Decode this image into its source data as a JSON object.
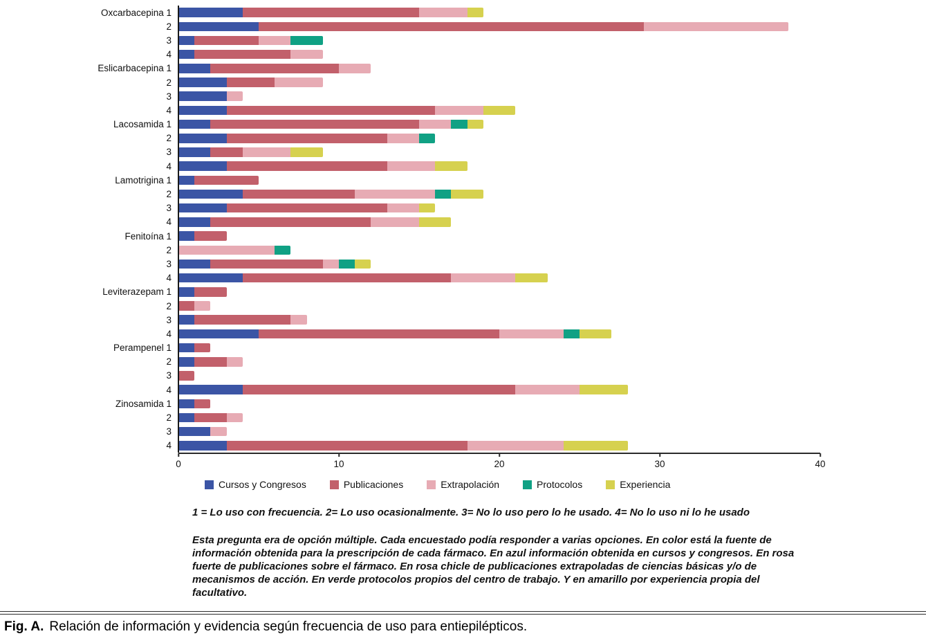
{
  "figure": {
    "fig_label": "Fig. A.",
    "fig_caption": "Relación de información y evidencia según frecuencia de uso para entiepilépticos."
  },
  "notes": {
    "scale_note": "1 = Lo uso con frecuencia. 2= Lo uso ocasionalmente. 3= No lo uso pero lo he usado. 4= No lo uso ni lo he usado",
    "paragraph": "Esta pregunta era de opción múltiple. Cada encuestado podía responder a varias opciones. En color está la fuente de información obtenida para la prescripción de cada fármaco. En azul información obtenida en cursos y congresos. En rosa fuerte de publicaciones sobre el fármaco. En rosa chicle de publicaciones extrapoladas de ciencias básicas y/o de mecanismos de acción. En verde protocolos propios del centro de trabajo. Y en amarillo por experiencia propia del facultativo."
  },
  "chart_data": {
    "type": "bar",
    "orientation": "horizontal",
    "stacked": true,
    "title": "",
    "xlabel": "",
    "ylabel": "",
    "xlim": [
      0,
      40
    ],
    "x_ticks": [
      0,
      10,
      20,
      30,
      40
    ],
    "grid": false,
    "legend_position": "bottom",
    "legend": [
      {
        "name": "Cursos y Congresos",
        "color": "#3b55a5"
      },
      {
        "name": "Publicaciones",
        "color": "#c2606b"
      },
      {
        "name": "Extrapolación",
        "color": "#e7abb4"
      },
      {
        "name": "Protocolos",
        "color": "#10a184"
      },
      {
        "name": "Experiencia",
        "color": "#d6d14f"
      }
    ],
    "row_scale_labels": [
      "1",
      "2",
      "3",
      "4"
    ],
    "groups": [
      {
        "drug": "Oxcarbacepina",
        "rows": [
          {
            "label": "1",
            "values": [
              4,
              11,
              3,
              0,
              1
            ]
          },
          {
            "label": "2",
            "values": [
              5,
              24,
              9,
              0,
              0
            ]
          },
          {
            "label": "3",
            "values": [
              1,
              4,
              2,
              2,
              0
            ]
          },
          {
            "label": "4",
            "values": [
              1,
              6,
              2,
              0,
              0
            ]
          }
        ]
      },
      {
        "drug": "Eslicarbacepina",
        "rows": [
          {
            "label": "1",
            "values": [
              2,
              8,
              2,
              0,
              0
            ]
          },
          {
            "label": "2",
            "values": [
              3,
              3,
              3,
              0,
              0
            ]
          },
          {
            "label": "3",
            "values": [
              3,
              0,
              1,
              0,
              0
            ]
          },
          {
            "label": "4",
            "values": [
              3,
              13,
              3,
              0,
              2
            ]
          }
        ]
      },
      {
        "drug": "Lacosamida",
        "rows": [
          {
            "label": "1",
            "values": [
              2,
              13,
              2,
              1,
              1
            ]
          },
          {
            "label": "2",
            "values": [
              3,
              10,
              2,
              1,
              0
            ]
          },
          {
            "label": "3",
            "values": [
              2,
              2,
              3,
              0,
              2
            ]
          },
          {
            "label": "4",
            "values": [
              3,
              10,
              3,
              0,
              2
            ]
          }
        ]
      },
      {
        "drug": "Lamotrigina",
        "rows": [
          {
            "label": "1",
            "values": [
              1,
              4,
              0,
              0,
              0
            ]
          },
          {
            "label": "2",
            "values": [
              4,
              7,
              5,
              1,
              2
            ]
          },
          {
            "label": "3",
            "values": [
              3,
              10,
              2,
              0,
              1
            ]
          },
          {
            "label": "4",
            "values": [
              2,
              10,
              3,
              0,
              2
            ]
          }
        ]
      },
      {
        "drug": "Fenitoína",
        "rows": [
          {
            "label": "1",
            "values": [
              1,
              2,
              0,
              0,
              0
            ]
          },
          {
            "label": "2",
            "values": [
              0,
              0,
              6,
              1,
              0
            ]
          },
          {
            "label": "3",
            "values": [
              2,
              7,
              1,
              1,
              1
            ]
          },
          {
            "label": "4",
            "values": [
              4,
              13,
              4,
              0,
              2
            ]
          }
        ]
      },
      {
        "drug": "Leviterazepam",
        "rows": [
          {
            "label": "1",
            "values": [
              1,
              2,
              0,
              0,
              0
            ]
          },
          {
            "label": "2",
            "values": [
              0,
              1,
              1,
              0,
              0
            ]
          },
          {
            "label": "3",
            "values": [
              1,
              6,
              1,
              0,
              0
            ]
          },
          {
            "label": "4",
            "values": [
              5,
              15,
              4,
              1,
              2
            ]
          }
        ]
      },
      {
        "drug": "Perampenel",
        "rows": [
          {
            "label": "1",
            "values": [
              1,
              1,
              0,
              0,
              0
            ]
          },
          {
            "label": "2",
            "values": [
              1,
              2,
              1,
              0,
              0
            ]
          },
          {
            "label": "3",
            "values": [
              0,
              1,
              0,
              0,
              0
            ]
          },
          {
            "label": "4",
            "values": [
              4,
              17,
              4,
              0,
              3
            ]
          }
        ]
      },
      {
        "drug": "Zinosamida",
        "rows": [
          {
            "label": "1",
            "values": [
              1,
              1,
              0,
              0,
              0
            ]
          },
          {
            "label": "2",
            "values": [
              1,
              2,
              1,
              0,
              0
            ]
          },
          {
            "label": "3",
            "values": [
              2,
              0,
              1,
              0,
              0
            ]
          },
          {
            "label": "4",
            "values": [
              3,
              15,
              6,
              0,
              4
            ]
          }
        ]
      }
    ]
  }
}
